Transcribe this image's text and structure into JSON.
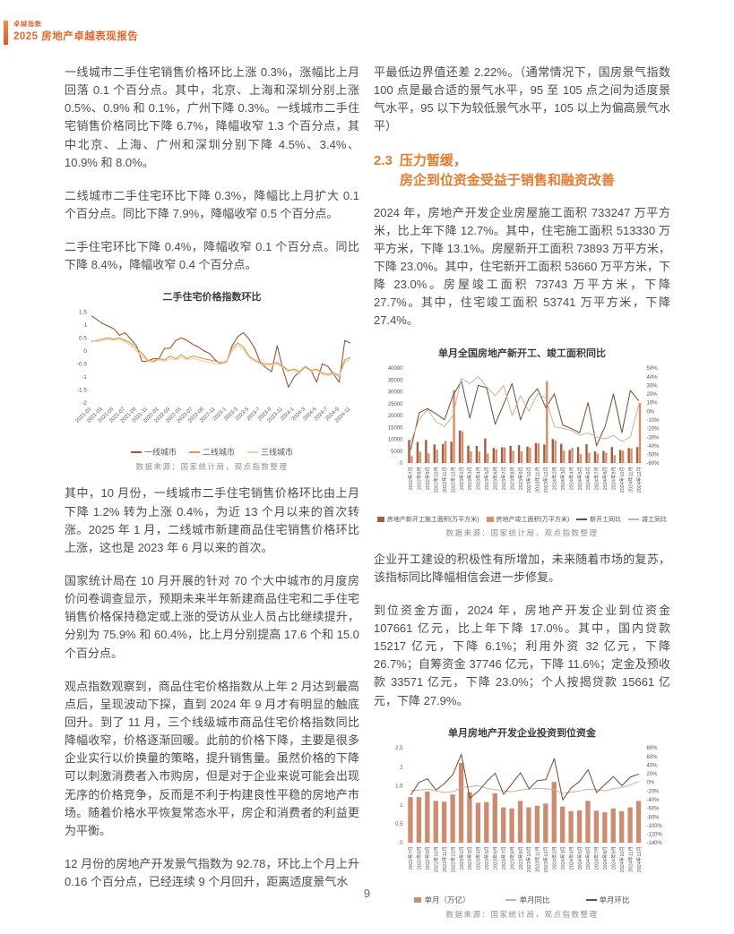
{
  "header": {
    "kicker": "卓越指数",
    "title": "2025 房地产卓越表现报告"
  },
  "page": {
    "number": "9"
  },
  "colors": {
    "accent": "#e2672f",
    "heading": "#e27c33",
    "body_text": "#4d4d4d"
  },
  "left_column": {
    "paragraphs": [
      "一线城市二手住宅销售价格环比上涨 0.3%，涨幅比上月回落 0.1 个百分点。其中，北京、上海和深圳分别上涨 0.5%、0.9% 和 0.1%，广州下降 0.3%。一线城市二手住宅销售价格同比下降 6.7%，降幅收窄 1.3 个百分点，其中北京、上海、广州和深圳分别下降 4.5%、3.4%、10.9% 和 8.0%。",
      "二线城市二手住宅环比下降 0.3%，降幅比上月扩大 0.1 个百分点。同比下降 7.9%，降幅收窄 0.5 个百分点。",
      "二手住宅环比下降 0.4%，降幅收窄 0.1 个百分点。同比下降 8.4%，降幅收窄 0.4 个百分点。"
    ],
    "paragraphs_after_chart": [
      "其中，10 月份，一线城市二手住宅销售价格环比由上月下降 1.2% 转为上涨 0.4%，为近 13 个月以来的首次转涨。2025 年 1 月，二线城市新建商品住宅销售价格环比上涨，这也是 2023 年 6 月以来的首次。",
      "国家统计局在 10 月开展的针对 70 个大中城市的月度房价问卷调查显示，预期未来半年新建商品住宅和二手住宅销售价格保持稳定或上涨的受访从业人员占比继续提升，分别为 75.9% 和 60.4%，比上月分别提高 17.6 个和 15.0 个百分点。",
      "观点指数观察到，商品住宅价格指数从上年 2 月达到最高点后，呈现波动下探，直到 2024 年 9 月才有明显的触底回升。到了 11 月，三个线级城市商品住宅价格指数同比降幅收窄，价格逐渐回暖。此前的价格下降，主要是很多企业实行以价换量的策略，提升销售量。虽然价格的下降可以刺激消费者入市购房，但是对于企业来说可能会出现无序的价格竞争，反而是不利于构建良性平稳的房地产市场。随着价格水平恢复常态水平，房企和消费者的利益更为平衡。",
      "12 月份的房地产开发景气指数为 92.78，环比上个月上升 0.16 个百分点，已经连续 9 个月回升，距离适度景气水"
    ]
  },
  "right_column": {
    "paragraph_top": "平最低边界值还差 2.22%。（通常情况下，国房景气指数 100 点是最合适的景气水平，95 至 105 点之间为适度景气水平，95 以下为较低景气水平，105 以上为偏高景气水平）",
    "section": {
      "number": "2.3",
      "line1": "压力暂缓，",
      "line2": "房企到位资金受益于销售和融资改善"
    },
    "paragraph_construction": "2024 年，房地产开发企业房屋施工面积 733247 万平方米，比上年下降 12.7%。其中，住宅施工面积 513330 万平方米，下降 13.1%。房屋新开工面积 73893 万平方米，下降 23.0%。其中，住宅新开工面积 53660 万平方米，下降 23.0%。房屋竣工面积 73743 万平方米，下降 27.7%。其中，住宅竣工面积 53741 万平方米，下降 27.4%。",
    "paragraph_outlook": "企业开工建设的积极性有所增加，未来随着市场的复苏，该指标同比降幅相信会进一步修复。",
    "paragraph_funds": "到位资金方面，2024 年，房地产开发企业到位资金 107661 亿元，比上年下降 17.0%。其中，国内贷款 15217 亿元，下降 6.1%；利用外资 32 亿元，下降 26.7%；自筹资金 37746 亿元，下降 11.6%；定金及预收款 33571 亿元，下降 23.0%；个人按揭贷款 15661 亿元，下降 27.9%。"
  },
  "chart_data": [
    {
      "type": "line",
      "title": "二手住宅价格指数环比",
      "source": "数据来源：国家统计局，观点指数整理",
      "ylim": [
        -2,
        1.5
      ],
      "ytick_step": 0.5,
      "tick_every": 2,
      "legend_position": "bottom",
      "grid": false,
      "categories": [
        "2021-01",
        "2021-02",
        "2021-03",
        "2021-04",
        "2021-05",
        "2021-06",
        "2021-07",
        "2021-08",
        "2021-09",
        "2021-10",
        "2021-11",
        "2021-12",
        "2022-01",
        "2022-02",
        "2022-03",
        "2022-04",
        "2022-05",
        "2022-06",
        "2022-07",
        "2022-08",
        "2022-09",
        "2022-10",
        "2022-11",
        "2022-12",
        "2023-1",
        "2023-2",
        "2023-3",
        "2023-4",
        "2023-5",
        "2023-6",
        "2023-7",
        "2023-8",
        "2023-9",
        "2023-10",
        "2023-11",
        "2023-12",
        "2024-1",
        "2024-2",
        "2024-3",
        "2024-4",
        "2024-5",
        "2024-6",
        "2024-7",
        "2024-8",
        "2024-9",
        "2024-10",
        "2024-11"
      ],
      "series": [
        {
          "name": "一线城市",
          "color": "#9e5a3e",
          "values": [
            1.35,
            1.2,
            1.05,
            0.95,
            0.85,
            0.6,
            0.7,
            0.45,
            0.2,
            -0.4,
            -0.4,
            -0.3,
            -0.3,
            0.1,
            0.1,
            0.4,
            0.5,
            0.4,
            0.25,
            0.15,
            0.0,
            -0.1,
            -0.35,
            -0.5,
            -0.45,
            0.2,
            0.55,
            0.7,
            0.45,
            0.1,
            -0.45,
            -0.65,
            -0.8,
            0.2,
            -0.7,
            -1.4,
            -1.0,
            -0.8,
            -0.6,
            -0.75,
            -1.2,
            -0.5,
            -0.6,
            -0.9,
            -1.2,
            0.4,
            0.3
          ]
        },
        {
          "name": "二线城市",
          "color": "#dc9b4c",
          "values": [
            0.35,
            0.4,
            0.45,
            0.5,
            0.45,
            0.5,
            0.4,
            0.3,
            0.1,
            -0.1,
            -0.35,
            -0.4,
            -0.3,
            -0.35,
            -0.2,
            -0.3,
            -0.15,
            -0.3,
            -0.2,
            -0.25,
            -0.3,
            -0.35,
            -0.4,
            -0.45,
            -0.4,
            0.1,
            0.3,
            0.15,
            -0.2,
            -0.35,
            -0.45,
            -0.5,
            -0.5,
            -0.45,
            -0.6,
            -0.75,
            -0.7,
            -0.8,
            -0.6,
            -0.75,
            -0.7,
            -0.85,
            -0.9,
            -0.85,
            -0.95,
            -0.35,
            -0.25
          ]
        },
        {
          "name": "三线城市",
          "color": "#e9d2ab",
          "values": [
            0.4,
            0.35,
            0.4,
            0.45,
            0.4,
            0.45,
            0.35,
            0.2,
            0.0,
            -0.2,
            -0.4,
            -0.45,
            -0.35,
            -0.4,
            -0.3,
            -0.35,
            -0.25,
            -0.35,
            -0.3,
            -0.35,
            -0.4,
            -0.45,
            -0.5,
            -0.5,
            -0.45,
            0.0,
            0.2,
            0.05,
            -0.25,
            -0.4,
            -0.5,
            -0.55,
            -0.55,
            -0.5,
            -0.65,
            -0.8,
            -0.75,
            -0.85,
            -0.65,
            -0.8,
            -0.75,
            -0.9,
            -0.95,
            -0.9,
            -1.0,
            -0.45,
            -0.3
          ]
        }
      ]
    },
    {
      "type": "combo",
      "title": "单月全国房地产新开工、竣工面积同比",
      "source": "数据来源：国家统计局，观点指数整理",
      "left_ylim": [
        0,
        40000
      ],
      "left_step": 5000,
      "right_ylim": [
        -60,
        50
      ],
      "right_step": 10,
      "categories": [
        "2022年7月",
        "2022年8月",
        "2022年9月",
        "2022年10月",
        "2022年11月",
        "2022年12月",
        "2023年2月",
        "2023年3月",
        "2023年4月",
        "2023年5月",
        "2023年6月",
        "2023年7月",
        "2023年8月",
        "2023年9月",
        "2023年10月",
        "2023年11月",
        "2023年12月",
        "2024年2月",
        "2024年3月",
        "2024年4月",
        "2024年5月",
        "2024年6月",
        "2024年7月",
        "2024年8月",
        "2024年9月",
        "2024年10月",
        "2024年11月",
        "2024年12月"
      ],
      "bar_series": [
        {
          "name": "房地产新开工施工面积(万平方米)",
          "color": "#a85a42",
          "values": [
            9700,
            8900,
            9700,
            7800,
            8000,
            9000,
            13700,
            7300,
            7200,
            10300,
            6300,
            6600,
            7200,
            7500,
            6900,
            8400,
            7800,
            10100,
            8100,
            5500,
            6700,
            7900,
            4900,
            5100,
            6700,
            5500,
            6300,
            6700
          ]
        },
        {
          "name": "房地产竣工面积(万平方米)",
          "color": "#d6916b",
          "values": [
            3000,
            4800,
            4000,
            5600,
            9300,
            30700,
            13400,
            4900,
            4800,
            4000,
            5800,
            6600,
            5200,
            4900,
            6500,
            8300,
            34500,
            9500,
            5200,
            6400,
            3700,
            4300,
            3900,
            4300,
            3300,
            5200,
            6100,
            25300
          ]
        }
      ],
      "line_series": [
        {
          "name": "新开工同比",
          "color": "#6f4b39",
          "values": [
            -45,
            -2,
            3,
            -3,
            -10,
            18,
            35,
            -8,
            30,
            27,
            -15,
            8,
            32,
            -10,
            15,
            26,
            4,
            20,
            -16,
            -20,
            -25,
            10,
            -40,
            -18,
            20,
            -25,
            24,
            12
          ]
        },
        {
          "name": "竣工同比",
          "color": "#ccb095",
          "values": [
            -36,
            -10,
            2,
            -12,
            -18,
            -5,
            38,
            32,
            40,
            28,
            18,
            30,
            -5,
            18,
            0,
            20,
            15,
            -18,
            -20,
            -22,
            -28,
            -25,
            -30,
            -32,
            -28,
            -35,
            -30,
            8
          ]
        }
      ]
    },
    {
      "type": "combo",
      "title": "单月房地产开发企业投资到位资金",
      "source": "数据来源：国家统计局，观点指数整理",
      "left_ylim": [
        0,
        2.5
      ],
      "left_step": 0.5,
      "right_ylim": [
        -140,
        80
      ],
      "right_step": 20,
      "categories": [
        "2022年7月",
        "2022年8月",
        "2022年9月",
        "2022年10月",
        "2022年11月",
        "2022年12月",
        "2023年2月",
        "2023年3月",
        "2023年4月",
        "2023年5月",
        "2023年6月",
        "2023年7月",
        "2023年8月",
        "2023年9月",
        "2023年10月",
        "2023年11月",
        "2023年12月",
        "2024年2月",
        "2024年3月",
        "2024年4月",
        "2024年5月",
        "2024年6月",
        "2024年7月",
        "2024年8月",
        "2024年9月",
        "2024年10月",
        "2024年11月",
        "2024年12月"
      ],
      "bar_series": [
        {
          "name": "单月（万亿）",
          "color": "#cd8c70",
          "values": [
            1.2,
            1.2,
            1.35,
            1.1,
            1.08,
            1.27,
            2.1,
            1.33,
            1.05,
            1.07,
            1.3,
            0.93,
            0.9,
            1.1,
            0.93,
            0.97,
            1.03,
            1.6,
            0.95,
            0.83,
            0.85,
            1.1,
            0.84,
            0.8,
            0.9,
            0.83,
            0.93,
            1.1
          ]
        }
      ],
      "line_series": [
        {
          "name": "单月同比",
          "color": "#ccb095",
          "values": [
            -20,
            -18,
            -16,
            -20,
            -24,
            -22,
            -12,
            -10,
            -8,
            -14,
            -17,
            -20,
            -22,
            -18,
            -16,
            -14,
            -15,
            -18,
            -26,
            -23,
            -20,
            -16,
            -17,
            -20,
            -15,
            -12,
            -6,
            2
          ]
        },
        {
          "name": "单月环比",
          "color": "#6f4b39",
          "values": [
            -30,
            0,
            8,
            -18,
            -3,
            18,
            65,
            -37,
            -21,
            2,
            21,
            -28,
            -3,
            22,
            -15,
            4,
            6,
            55,
            -41,
            -13,
            2,
            29,
            -24,
            -5,
            13,
            -8,
            12,
            19
          ]
        }
      ]
    }
  ]
}
